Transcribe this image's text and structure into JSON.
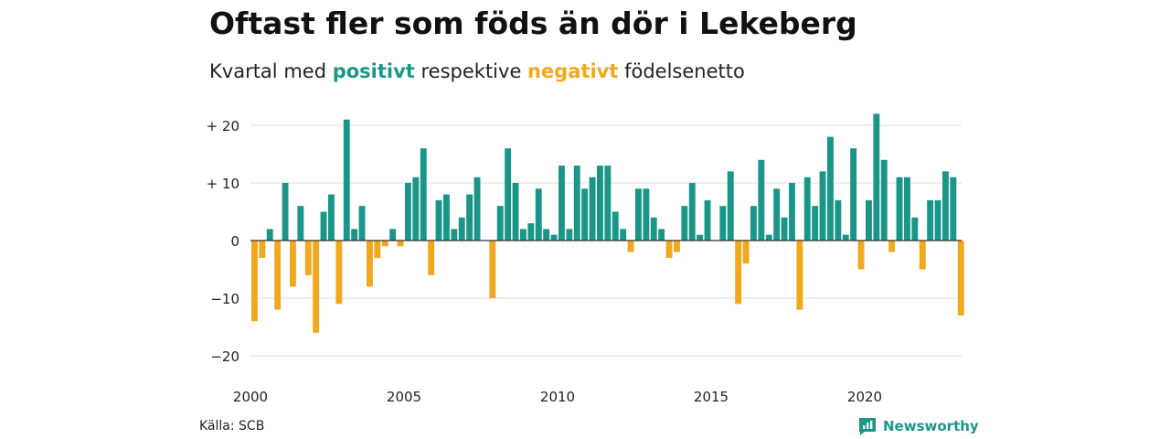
{
  "chart_data": {
    "type": "bar",
    "title": "Oftast fler som föds än dör i Lekeberg",
    "subtitle": {
      "prefix": "Kvartal med ",
      "positive_word": "positivt",
      "middle": " respektive ",
      "negative_word": "negativt",
      "suffix": " födelsenetto"
    },
    "x_start": 2000.0,
    "x_step": 0.25,
    "values": [
      -14,
      -3,
      2,
      -12,
      10,
      -8,
      6,
      -6,
      -16,
      5,
      8,
      -11,
      21,
      2,
      6,
      -8,
      -3,
      -1,
      2,
      -1,
      10,
      11,
      16,
      -6,
      7,
      8,
      2,
      4,
      8,
      11,
      0,
      -10,
      6,
      16,
      10,
      2,
      3,
      9,
      2,
      1,
      13,
      2,
      13,
      9,
      11,
      13,
      13,
      5,
      2,
      -2,
      9,
      9,
      4,
      2,
      -3,
      -2,
      6,
      10,
      1,
      7,
      0,
      6,
      12,
      -11,
      -4,
      6,
      14,
      1,
      9,
      4,
      10,
      -12,
      11,
      6,
      12,
      18,
      7,
      1,
      16,
      -5,
      7,
      22,
      14,
      -2,
      11,
      11,
      4,
      -5,
      7,
      7,
      12,
      11,
      -13
    ],
    "ylim": [
      -23,
      23
    ],
    "yticks": [
      20,
      10,
      0,
      -10,
      -20
    ],
    "ytick_labels": [
      "+ 20",
      "+ 10",
      "0",
      "−10",
      "−20"
    ],
    "xticks": [
      2000,
      2005,
      2010,
      2015,
      2020
    ],
    "xtick_labels": [
      "2000",
      "2005",
      "2010",
      "2015",
      "2020"
    ],
    "grid": true,
    "colors": {
      "positive": "#1a9688",
      "negative": "#f2a81d",
      "grid": "#dddddd",
      "zero_line": "#333333"
    }
  },
  "source": "Källa: SCB",
  "brand": {
    "name": "Newsworthy",
    "icon": "newsworthy-logo-icon"
  }
}
